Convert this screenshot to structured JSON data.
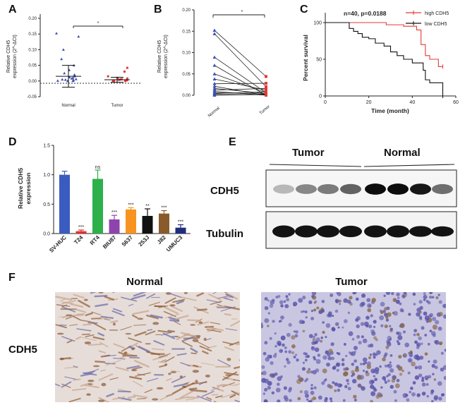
{
  "panel_labels": {
    "a": "A",
    "b": "B",
    "c": "C",
    "d": "D",
    "e": "E",
    "f": "F"
  },
  "panel_a": {
    "ylabel_line1": "Relative CDH5",
    "ylabel_line2": "expression (2^-ΔCt)",
    "yticks": [
      "0.20",
      "0.15",
      "0.10",
      "0.05",
      "0.00",
      "-0.05"
    ],
    "categories": [
      "Normal",
      "Tumor"
    ],
    "significance": "*"
  },
  "panel_b": {
    "ylabel_line1": "Relative CDH5",
    "ylabel_line2": "expression (2^-ΔCt)",
    "yticks": [
      "0.20",
      "0.15",
      "0.10",
      "0.05",
      "0.00"
    ],
    "categories": [
      "Normal",
      "Tumor"
    ],
    "significance": "*"
  },
  "panel_c": {
    "annotation": "n=40,  p=0.0188",
    "xlabel": "Time (month)",
    "ylabel": "Percent survival",
    "xticks": [
      "0",
      "20",
      "40",
      "60"
    ],
    "yticks": [
      "0",
      "50",
      "100"
    ],
    "legend": [
      "high CDH5",
      "low CDH5"
    ]
  },
  "panel_d": {
    "ylabel_line1": "Relative CDH5",
    "ylabel_line2": "expression",
    "yticks": [
      "1.5",
      "1.0",
      "0.5",
      "0.0"
    ]
  },
  "panel_e": {
    "group_tumor": "Tumor",
    "group_normal": "Normal",
    "row1": "CDH5",
    "row2": "Tubulin"
  },
  "panel_f": {
    "title_normal": "Normal",
    "title_tumor": "Tumor",
    "row_label": "CDH5"
  },
  "colors": {
    "high": "#e53935",
    "low": "#111111",
    "normal_points": "#3a4fb0",
    "tumor_points": "#e53935"
  },
  "chart_data": [
    {
      "panel": "A",
      "type": "scatter",
      "ylim": [
        -0.05,
        0.2
      ],
      "categories": [
        "Normal",
        "Tumor"
      ],
      "series": [
        {
          "name": "Normal",
          "mean": 0.015,
          "sd": 0.035,
          "values": [
            0.152,
            0.142,
            0.1,
            0.07,
            0.05,
            0.035,
            0.025,
            0.02,
            0.015,
            0.012,
            0.01,
            0.008,
            0.006,
            0.005,
            0.004,
            0.003,
            0.002,
            0.001,
            0.0,
            0.0
          ]
        },
        {
          "name": "Tumor",
          "mean": 0.004,
          "sd": 0.008,
          "values": [
            0.042,
            0.03,
            0.015,
            0.01,
            0.008,
            0.006,
            0.005,
            0.004,
            0.003,
            0.002,
            0.001,
            0.0,
            0.0,
            0.0
          ]
        }
      ]
    },
    {
      "panel": "B",
      "type": "line",
      "ylim": [
        0,
        0.2
      ],
      "categories": [
        "Normal",
        "Tumor"
      ],
      "pairs": [
        [
          0.152,
          0.044
        ],
        [
          0.144,
          0.02
        ],
        [
          0.089,
          0.006
        ],
        [
          0.07,
          0.0
        ],
        [
          0.05,
          0.006
        ],
        [
          0.038,
          0.012
        ],
        [
          0.027,
          0.028
        ],
        [
          0.021,
          0.0
        ],
        [
          0.016,
          0.004
        ],
        [
          0.012,
          0.016
        ],
        [
          0.009,
          0.0
        ],
        [
          0.006,
          0.003
        ],
        [
          0.004,
          0.008
        ],
        [
          0.002,
          0.001
        ],
        [
          0.0,
          0.002
        ]
      ]
    },
    {
      "panel": "C",
      "type": "line",
      "xlim": [
        0,
        60
      ],
      "ylim": [
        0,
        100
      ],
      "series": [
        {
          "name": "high CDH5",
          "x": [
            0,
            20,
            28,
            36,
            42,
            44,
            46,
            48,
            52,
            54
          ],
          "y": [
            100,
            100,
            97,
            95,
            90,
            70,
            55,
            50,
            40,
            40
          ]
        },
        {
          "name": "low CDH5",
          "x": [
            0,
            7,
            11,
            13,
            15,
            17,
            20,
            23,
            27,
            30,
            33,
            36,
            40,
            45,
            46,
            48,
            52,
            54
          ],
          "y": [
            100,
            100,
            92,
            88,
            85,
            80,
            78,
            72,
            68,
            60,
            55,
            50,
            45,
            35,
            22,
            18,
            18,
            0
          ]
        }
      ]
    },
    {
      "panel": "D",
      "type": "bar",
      "ylim": [
        0,
        1.5
      ],
      "categories": [
        "SV-HUC",
        "T24",
        "RT4",
        "BIU87",
        "5637",
        "253J",
        "J82",
        "UMUC3"
      ],
      "values": [
        1.0,
        0.04,
        0.93,
        0.24,
        0.41,
        0.3,
        0.34,
        0.1
      ],
      "errors": [
        0.06,
        0.02,
        0.15,
        0.07,
        0.03,
        0.12,
        0.05,
        0.05
      ],
      "significance": [
        "",
        "***",
        "ns",
        "***",
        "***",
        "**",
        "***",
        "***"
      ],
      "colors": [
        "#3a5bbf",
        "#e03030",
        "#2db04a",
        "#8e44ad",
        "#f7931e",
        "#111111",
        "#8b5a2b",
        "#1f2d7a"
      ]
    }
  ]
}
